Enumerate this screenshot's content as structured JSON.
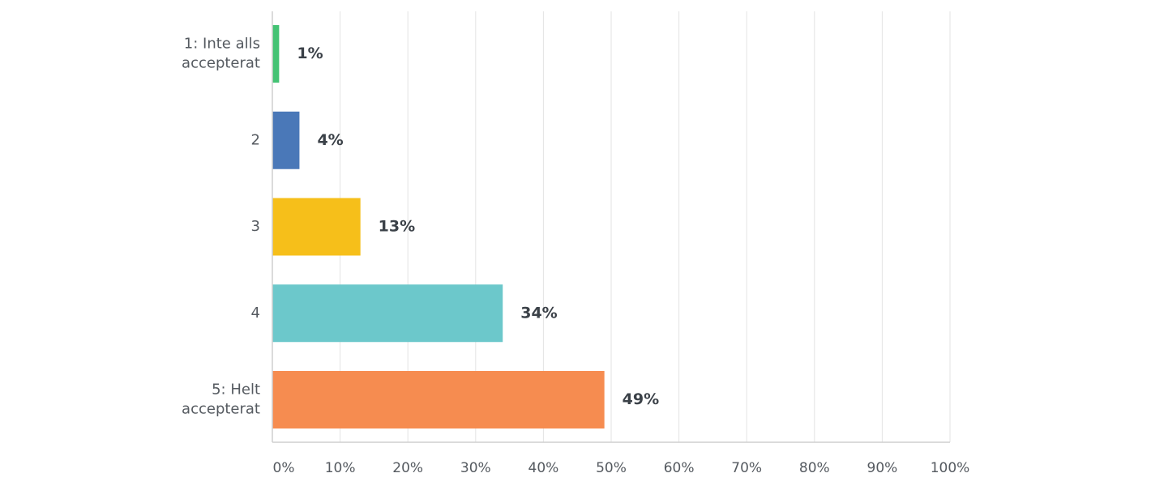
{
  "chart_data": {
    "type": "bar",
    "orientation": "horizontal",
    "categories": [
      [
        "1: Inte alls",
        "accepterat"
      ],
      [
        "2"
      ],
      [
        "3"
      ],
      [
        "4"
      ],
      [
        "5: Helt",
        "accepterat"
      ]
    ],
    "values": [
      1,
      4,
      13,
      34,
      49
    ],
    "value_labels": [
      "1%",
      "4%",
      "13%",
      "34%",
      "49%"
    ],
    "colors": [
      "#44c374",
      "#4a78b8",
      "#f6bf1a",
      "#6cc8cb",
      "#f68c50"
    ],
    "xlim": [
      0,
      100
    ],
    "x_ticks": [
      0,
      10,
      20,
      30,
      40,
      50,
      60,
      70,
      80,
      90,
      100
    ],
    "x_tick_labels": [
      "0%",
      "10%",
      "20%",
      "30%",
      "40%",
      "50%",
      "60%",
      "70%",
      "80%",
      "90%",
      "100%"
    ],
    "grid": true,
    "grid_color": "#e3e3e3",
    "axis_color": "#cfcfcf",
    "title": "",
    "xlabel": "",
    "ylabel": ""
  }
}
